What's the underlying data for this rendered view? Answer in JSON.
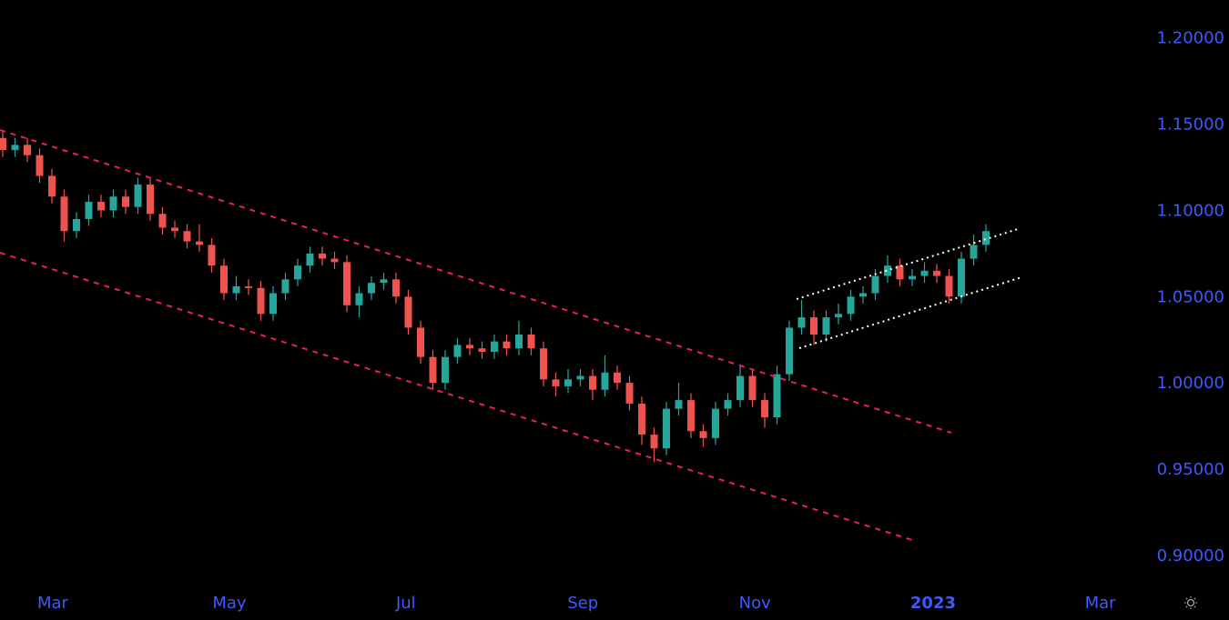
{
  "chart_data": {
    "type": "candlestick",
    "up_color": "#26a69a",
    "down_color": "#ef5350",
    "ylim": [
      0.882,
      1.222
    ],
    "yticks": [
      {
        "value": 0.9,
        "label": "0.90000"
      },
      {
        "value": 0.95,
        "label": "0.95000"
      },
      {
        "value": 1.0,
        "label": "1.00000"
      },
      {
        "value": 1.05,
        "label": "1.05000"
      },
      {
        "value": 1.1,
        "label": "1.10000"
      },
      {
        "value": 1.15,
        "label": "1.15000"
      },
      {
        "value": 1.2,
        "label": "1.20000"
      }
    ],
    "xlim": [
      -0.222,
      92.37
    ],
    "xticks": [
      {
        "value": 4.07,
        "label": "Mar"
      },
      {
        "value": 18.44,
        "label": "May"
      },
      {
        "value": 32.8,
        "label": "Jul"
      },
      {
        "value": 47.2,
        "label": "Sep"
      },
      {
        "value": 61.2,
        "label": "Nov"
      },
      {
        "value": 75.7,
        "label": "2023"
      },
      {
        "value": 89.3,
        "label": "Mar"
      }
    ],
    "ohlc": [
      [
        1.142,
        1.146,
        1.131,
        1.135
      ],
      [
        1.135,
        1.142,
        1.131,
        1.138
      ],
      [
        1.138,
        1.142,
        1.128,
        1.132
      ],
      [
        1.132,
        1.136,
        1.116,
        1.12
      ],
      [
        1.12,
        1.124,
        1.104,
        1.108
      ],
      [
        1.108,
        1.112,
        1.082,
        1.088
      ],
      [
        1.088,
        1.099,
        1.084,
        1.095
      ],
      [
        1.095,
        1.109,
        1.091,
        1.105
      ],
      [
        1.105,
        1.109,
        1.096,
        1.1
      ],
      [
        1.1,
        1.112,
        1.096,
        1.108
      ],
      [
        1.108,
        1.112,
        1.098,
        1.102
      ],
      [
        1.102,
        1.119,
        1.098,
        1.115
      ],
      [
        1.115,
        1.119,
        1.094,
        1.098
      ],
      [
        1.098,
        1.102,
        1.086,
        1.09
      ],
      [
        1.09,
        1.094,
        1.084,
        1.088
      ],
      [
        1.088,
        1.092,
        1.078,
        1.082
      ],
      [
        1.082,
        1.092,
        1.076,
        1.08
      ],
      [
        1.08,
        1.084,
        1.064,
        1.068
      ],
      [
        1.068,
        1.072,
        1.048,
        1.052
      ],
      [
        1.052,
        1.062,
        1.048,
        1.056
      ],
      [
        1.056,
        1.06,
        1.051,
        1.055
      ],
      [
        1.055,
        1.059,
        1.036,
        1.04
      ],
      [
        1.04,
        1.056,
        1.036,
        1.052
      ],
      [
        1.052,
        1.064,
        1.048,
        1.06
      ],
      [
        1.06,
        1.072,
        1.056,
        1.068
      ],
      [
        1.068,
        1.079,
        1.064,
        1.075
      ],
      [
        1.075,
        1.079,
        1.068,
        1.072
      ],
      [
        1.072,
        1.076,
        1.066,
        1.07
      ],
      [
        1.07,
        1.074,
        1.041,
        1.045
      ],
      [
        1.045,
        1.056,
        1.038,
        1.052
      ],
      [
        1.052,
        1.062,
        1.048,
        1.058
      ],
      [
        1.058,
        1.064,
        1.054,
        1.06
      ],
      [
        1.06,
        1.064,
        1.046,
        1.05
      ],
      [
        1.05,
        1.054,
        1.028,
        1.032
      ],
      [
        1.032,
        1.036,
        1.011,
        1.015
      ],
      [
        1.015,
        1.019,
        0.996,
        1.0
      ],
      [
        1.0,
        1.019,
        0.996,
        1.015
      ],
      [
        1.015,
        1.026,
        1.011,
        1.022
      ],
      [
        1.022,
        1.026,
        1.016,
        1.02
      ],
      [
        1.02,
        1.024,
        1.014,
        1.018
      ],
      [
        1.018,
        1.028,
        1.014,
        1.024
      ],
      [
        1.024,
        1.028,
        1.016,
        1.02
      ],
      [
        1.02,
        1.036,
        1.016,
        1.028
      ],
      [
        1.028,
        1.032,
        1.016,
        1.02
      ],
      [
        1.02,
        1.024,
        0.998,
        1.002
      ],
      [
        1.002,
        1.006,
        0.992,
        0.998
      ],
      [
        0.998,
        1.008,
        0.994,
        1.002
      ],
      [
        1.002,
        1.008,
        0.998,
        1.004
      ],
      [
        1.004,
        1.008,
        0.99,
        0.996
      ],
      [
        0.996,
        1.016,
        0.992,
        1.006
      ],
      [
        1.006,
        1.01,
        0.996,
        1.0
      ],
      [
        1.0,
        1.004,
        0.984,
        0.988
      ],
      [
        0.988,
        0.992,
        0.964,
        0.97
      ],
      [
        0.97,
        0.974,
        0.954,
        0.962
      ],
      [
        0.962,
        0.989,
        0.958,
        0.985
      ],
      [
        0.985,
        1.0,
        0.981,
        0.99
      ],
      [
        0.99,
        0.994,
        0.968,
        0.972
      ],
      [
        0.972,
        0.976,
        0.963,
        0.968
      ],
      [
        0.968,
        0.989,
        0.964,
        0.985
      ],
      [
        0.985,
        0.994,
        0.981,
        0.99
      ],
      [
        0.99,
        1.01,
        0.986,
        1.004
      ],
      [
        1.004,
        1.008,
        0.986,
        0.99
      ],
      [
        0.99,
        0.994,
        0.974,
        0.98
      ],
      [
        0.98,
        1.01,
        0.976,
        1.005
      ],
      [
        1.005,
        1.036,
        1.001,
        1.032
      ],
      [
        1.032,
        1.048,
        1.028,
        1.038
      ],
      [
        1.038,
        1.042,
        1.022,
        1.028
      ],
      [
        1.028,
        1.042,
        1.024,
        1.038
      ],
      [
        1.038,
        1.046,
        1.034,
        1.04
      ],
      [
        1.04,
        1.054,
        1.036,
        1.05
      ],
      [
        1.05,
        1.056,
        1.046,
        1.052
      ],
      [
        1.052,
        1.066,
        1.048,
        1.062
      ],
      [
        1.062,
        1.074,
        1.058,
        1.068
      ],
      [
        1.068,
        1.072,
        1.056,
        1.06
      ],
      [
        1.06,
        1.066,
        1.056,
        1.062
      ],
      [
        1.062,
        1.07,
        1.058,
        1.065
      ],
      [
        1.065,
        1.069,
        1.058,
        1.062
      ],
      [
        1.062,
        1.066,
        1.046,
        1.05
      ],
      [
        1.05,
        1.076,
        1.046,
        1.072
      ],
      [
        1.072,
        1.086,
        1.068,
        1.08
      ],
      [
        1.08,
        1.092,
        1.076,
        1.088
      ]
    ]
  }
}
